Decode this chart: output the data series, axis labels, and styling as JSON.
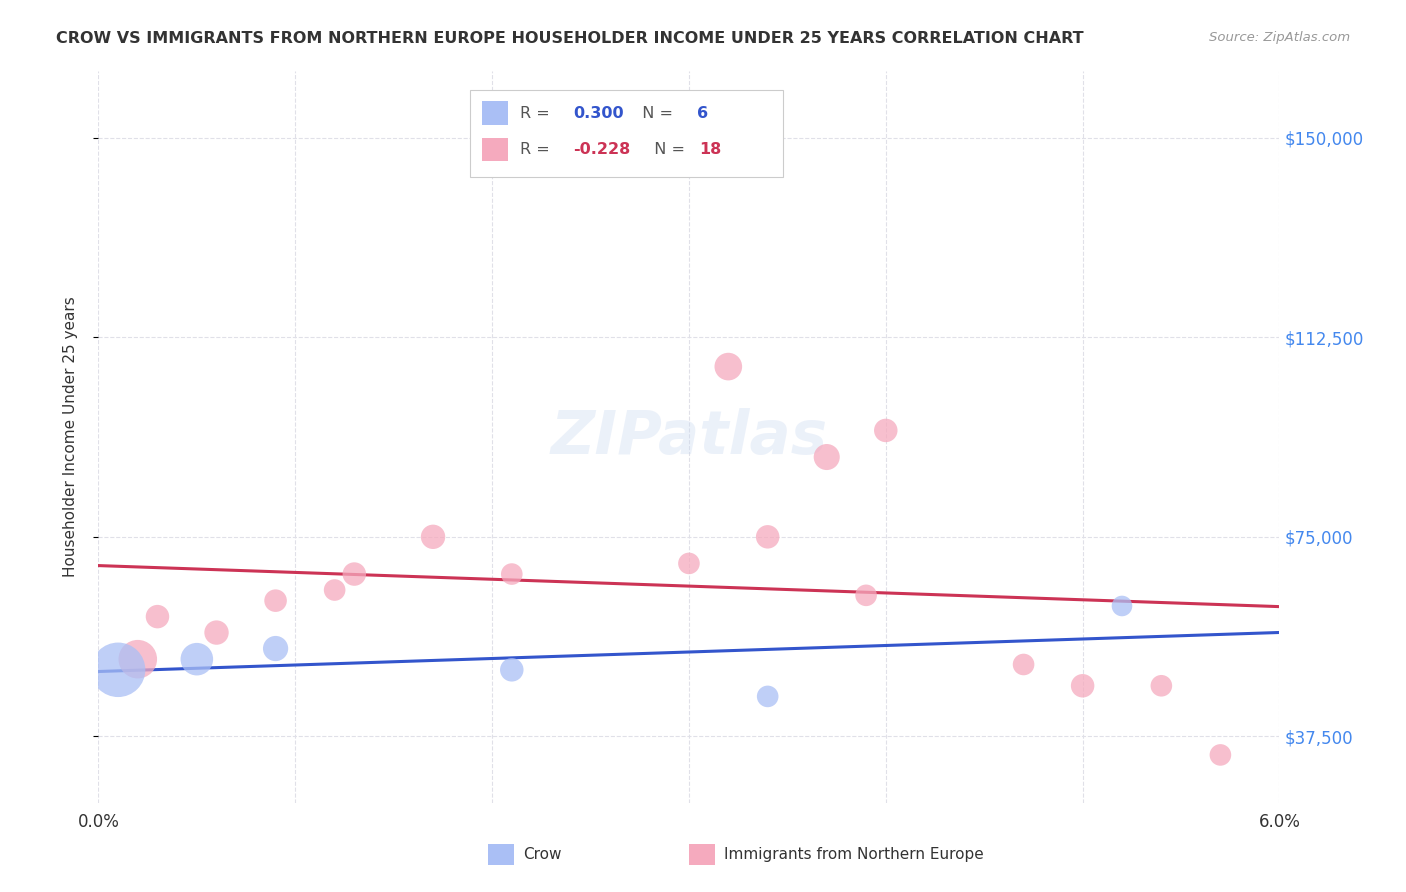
{
  "title": "CROW VS IMMIGRANTS FROM NORTHERN EUROPE HOUSEHOLDER INCOME UNDER 25 YEARS CORRELATION CHART",
  "source": "Source: ZipAtlas.com",
  "legend_crow_label": "Crow",
  "legend_imm_label": "Immigrants from Northern Europe",
  "ylabel": "Householder Income Under 25 years",
  "xlim": [
    0.0,
    0.06
  ],
  "ylim": [
    25000,
    162500
  ],
  "yticks": [
    37500,
    75000,
    112500,
    150000
  ],
  "ytick_labels": [
    "$37,500",
    "$75,000",
    "$112,500",
    "$150,000"
  ],
  "xtick_positions": [
    0.0,
    0.01,
    0.02,
    0.03,
    0.04,
    0.05,
    0.06
  ],
  "xtick_labels": [
    "0.0%",
    "",
    "",
    "",
    "",
    "",
    "6.0%"
  ],
  "crow_R": "0.300",
  "crow_N": "6",
  "immigrants_R": "-0.228",
  "immigrants_N": "18",
  "crow_color": "#aabff5",
  "immigrants_color": "#f5aabe",
  "crow_line_color": "#3355cc",
  "immigrants_line_color": "#cc3355",
  "crow_x": [
    0.001,
    0.005,
    0.009,
    0.021,
    0.034,
    0.052
  ],
  "crow_y": [
    50000,
    52000,
    54000,
    50000,
    45000,
    62000
  ],
  "crow_sizes": [
    700,
    250,
    150,
    130,
    110,
    100
  ],
  "immigrants_x": [
    0.002,
    0.003,
    0.006,
    0.009,
    0.012,
    0.013,
    0.017,
    0.021,
    0.03,
    0.032,
    0.034,
    0.037,
    0.039,
    0.04,
    0.047,
    0.05,
    0.054,
    0.057
  ],
  "immigrants_y": [
    52000,
    60000,
    57000,
    63000,
    65000,
    68000,
    75000,
    68000,
    70000,
    107000,
    75000,
    90000,
    64000,
    95000,
    51000,
    47000,
    47000,
    34000
  ],
  "immigrants_sizes": [
    350,
    130,
    140,
    120,
    110,
    130,
    140,
    110,
    110,
    180,
    130,
    160,
    110,
    130,
    110,
    130,
    110,
    110
  ],
  "watermark": "ZIPatlas",
  "background_color": "#ffffff",
  "grid_color": "#e0e0e8",
  "title_color": "#333333",
  "source_color": "#999999",
  "ylabel_color": "#333333",
  "tick_color": "#333333",
  "right_tick_color": "#4488ee"
}
